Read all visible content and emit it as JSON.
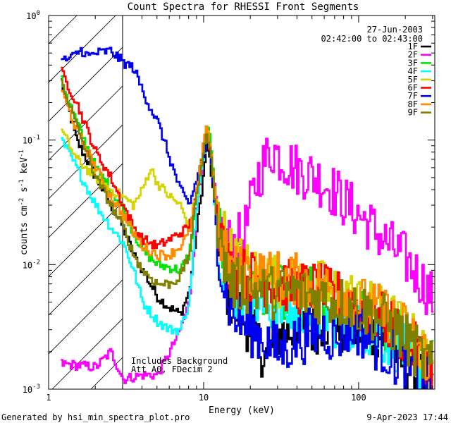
{
  "chart_data": {
    "type": "line",
    "title": "Count Spectra for RHESSI Front Segments",
    "xlabel": "Energy (keV)",
    "ylabel_base": "counts cm",
    "ylabel_sup1": "-2",
    "ylabel_mid1": " s",
    "ylabel_sup2": "-1",
    "ylabel_mid2": " keV",
    "ylabel_sup3": "-1",
    "x_scale": "log",
    "y_scale": "log",
    "xlim": [
      1,
      310
    ],
    "ylim": [
      0.001,
      1
    ],
    "x_ticks": [
      {
        "value": 1,
        "label": "1"
      },
      {
        "value": 10,
        "label": "10"
      },
      {
        "value": 100,
        "label": "100"
      }
    ],
    "y_ticks": [
      {
        "value": 0.001,
        "base": "10",
        "exp": "-3"
      },
      {
        "value": 0.01,
        "base": "10",
        "exp": "-2"
      },
      {
        "value": 0.1,
        "base": "10",
        "exp": "-1"
      },
      {
        "value": 1,
        "base": "10",
        "exp": "0"
      }
    ],
    "date": "27-Jun-2003",
    "time_range": "02:42:00 to 02:43:00",
    "legend_position": "top-right",
    "shaded_region": {
      "xmin": 1,
      "xmax": 3
    },
    "annotations": [
      "Includes Background",
      "Att A0, FDecim 2"
    ],
    "series": [
      {
        "name": "1F",
        "color": "#000000",
        "points": [
          [
            1.2,
            0.3
          ],
          [
            1.5,
            0.1
          ],
          [
            2.0,
            0.05
          ],
          [
            2.5,
            0.03
          ],
          [
            3.0,
            0.02
          ],
          [
            3.5,
            0.012
          ],
          [
            4.0,
            0.009
          ],
          [
            5.0,
            0.0055
          ],
          [
            6.0,
            0.0045
          ],
          [
            7.0,
            0.004
          ],
          [
            8.0,
            0.006
          ],
          [
            9.0,
            0.02
          ],
          [
            10.0,
            0.06
          ],
          [
            10.5,
            0.1
          ],
          [
            11.0,
            0.06
          ],
          [
            12.0,
            0.02
          ],
          [
            13.0,
            0.008
          ],
          [
            15.0,
            0.005
          ],
          [
            20.0,
            0.003
          ],
          [
            25.0,
            0.0018
          ],
          [
            30.0,
            0.0028
          ],
          [
            40.0,
            0.003
          ],
          [
            50.0,
            0.003
          ],
          [
            60.0,
            0.0035
          ],
          [
            70.0,
            0.003
          ],
          [
            80.0,
            0.003
          ],
          [
            100.0,
            0.003
          ],
          [
            150.0,
            0.0025
          ],
          [
            200.0,
            0.0015
          ],
          [
            300.0,
            0.0011
          ]
        ]
      },
      {
        "name": "2F",
        "color": "#ff00ff",
        "points": [
          [
            1.2,
            0.0016
          ],
          [
            2.0,
            0.0015
          ],
          [
            2.5,
            0.002
          ],
          [
            3.0,
            0.0012
          ],
          [
            4.0,
            0.0013
          ],
          [
            5.0,
            0.0013
          ],
          [
            6.0,
            0.002
          ],
          [
            7.0,
            0.003
          ],
          [
            8.0,
            0.005
          ],
          [
            9.0,
            0.03
          ],
          [
            10.0,
            0.09
          ],
          [
            10.5,
            0.13
          ],
          [
            11.0,
            0.08
          ],
          [
            12.0,
            0.03
          ],
          [
            13.0,
            0.018
          ],
          [
            15.0,
            0.014
          ],
          [
            18.0,
            0.017
          ],
          [
            20.0,
            0.03
          ],
          [
            22.0,
            0.05
          ],
          [
            25.0,
            0.07
          ],
          [
            28.0,
            0.085
          ],
          [
            30.0,
            0.075
          ],
          [
            35.0,
            0.065
          ],
          [
            40.0,
            0.058
          ],
          [
            50.0,
            0.052
          ],
          [
            60.0,
            0.045
          ],
          [
            70.0,
            0.038
          ],
          [
            80.0,
            0.032
          ],
          [
            100.0,
            0.025
          ],
          [
            120.0,
            0.02
          ],
          [
            150.0,
            0.015
          ],
          [
            200.0,
            0.011
          ],
          [
            250.0,
            0.0075
          ],
          [
            300.0,
            0.0055
          ]
        ]
      },
      {
        "name": "3F",
        "color": "#00e600",
        "points": [
          [
            1.2,
            0.3
          ],
          [
            1.5,
            0.14
          ],
          [
            2.0,
            0.06
          ],
          [
            2.5,
            0.04
          ],
          [
            3.0,
            0.028
          ],
          [
            3.5,
            0.018
          ],
          [
            4.0,
            0.013
          ],
          [
            5.0,
            0.01
          ],
          [
            6.0,
            0.0095
          ],
          [
            7.0,
            0.009
          ],
          [
            8.0,
            0.012
          ],
          [
            9.0,
            0.04
          ],
          [
            10.0,
            0.09
          ],
          [
            10.5,
            0.14
          ],
          [
            11.0,
            0.09
          ],
          [
            12.0,
            0.025
          ],
          [
            13.0,
            0.012
          ],
          [
            15.0,
            0.008
          ],
          [
            20.0,
            0.007
          ],
          [
            25.0,
            0.0065
          ],
          [
            30.0,
            0.006
          ],
          [
            40.0,
            0.006
          ],
          [
            50.0,
            0.006
          ],
          [
            60.0,
            0.0055
          ],
          [
            70.0,
            0.005
          ],
          [
            80.0,
            0.005
          ],
          [
            100.0,
            0.004
          ],
          [
            150.0,
            0.003
          ],
          [
            200.0,
            0.0025
          ],
          [
            300.0,
            0.0015
          ]
        ]
      },
      {
        "name": "4F",
        "color": "#00ffff",
        "points": [
          [
            1.2,
            0.1
          ],
          [
            1.5,
            0.06
          ],
          [
            2.0,
            0.03
          ],
          [
            2.5,
            0.02
          ],
          [
            3.0,
            0.015
          ],
          [
            3.5,
            0.009
          ],
          [
            4.0,
            0.005
          ],
          [
            5.0,
            0.0035
          ],
          [
            6.0,
            0.003
          ],
          [
            7.0,
            0.003
          ],
          [
            8.0,
            0.005
          ],
          [
            9.0,
            0.03
          ],
          [
            10.0,
            0.08
          ],
          [
            10.5,
            0.13
          ],
          [
            11.0,
            0.08
          ],
          [
            12.0,
            0.02
          ],
          [
            13.0,
            0.01
          ],
          [
            15.0,
            0.006
          ],
          [
            20.0,
            0.005
          ],
          [
            25.0,
            0.0045
          ],
          [
            30.0,
            0.0045
          ],
          [
            40.0,
            0.004
          ],
          [
            50.0,
            0.004
          ],
          [
            60.0,
            0.004
          ],
          [
            70.0,
            0.0035
          ],
          [
            80.0,
            0.0035
          ],
          [
            100.0,
            0.003
          ],
          [
            150.0,
            0.0025
          ],
          [
            200.0,
            0.002
          ],
          [
            300.0,
            0.0012
          ]
        ]
      },
      {
        "name": "5F",
        "color": "#d4d400",
        "points": [
          [
            1.2,
            0.12
          ],
          [
            1.5,
            0.07
          ],
          [
            2.0,
            0.05
          ],
          [
            2.5,
            0.04
          ],
          [
            3.0,
            0.035
          ],
          [
            3.5,
            0.03
          ],
          [
            4.0,
            0.04
          ],
          [
            4.5,
            0.06
          ],
          [
            5.0,
            0.045
          ],
          [
            6.0,
            0.035
          ],
          [
            7.0,
            0.03
          ],
          [
            8.0,
            0.02
          ],
          [
            9.0,
            0.04
          ],
          [
            10.0,
            0.1
          ],
          [
            10.5,
            0.12
          ],
          [
            11.0,
            0.07
          ],
          [
            12.0,
            0.03
          ],
          [
            13.0,
            0.02
          ],
          [
            15.0,
            0.012
          ],
          [
            20.0,
            0.009
          ],
          [
            25.0,
            0.008
          ],
          [
            30.0,
            0.0075
          ],
          [
            40.0,
            0.007
          ],
          [
            50.0,
            0.007
          ],
          [
            60.0,
            0.0065
          ],
          [
            70.0,
            0.006
          ],
          [
            80.0,
            0.006
          ],
          [
            100.0,
            0.005
          ],
          [
            150.0,
            0.004
          ],
          [
            200.0,
            0.003
          ],
          [
            300.0,
            0.0015
          ]
        ]
      },
      {
        "name": "6F",
        "color": "#ff0000",
        "points": [
          [
            1.2,
            0.35
          ],
          [
            1.5,
            0.2
          ],
          [
            2.0,
            0.08
          ],
          [
            2.5,
            0.05
          ],
          [
            3.0,
            0.03
          ],
          [
            3.5,
            0.02
          ],
          [
            4.0,
            0.016
          ],
          [
            5.0,
            0.014
          ],
          [
            6.0,
            0.016
          ],
          [
            7.0,
            0.018
          ],
          [
            8.0,
            0.02
          ],
          [
            9.0,
            0.04
          ],
          [
            10.0,
            0.1
          ],
          [
            10.5,
            0.12
          ],
          [
            11.0,
            0.08
          ],
          [
            12.0,
            0.03
          ],
          [
            13.0,
            0.015
          ],
          [
            15.0,
            0.009
          ],
          [
            20.0,
            0.008
          ],
          [
            25.0,
            0.0075
          ],
          [
            30.0,
            0.007
          ],
          [
            40.0,
            0.0065
          ],
          [
            50.0,
            0.0065
          ],
          [
            60.0,
            0.006
          ],
          [
            70.0,
            0.0055
          ],
          [
            80.0,
            0.0055
          ],
          [
            100.0,
            0.0045
          ],
          [
            150.0,
            0.0035
          ],
          [
            200.0,
            0.0025
          ],
          [
            300.0,
            0.0014
          ]
        ]
      },
      {
        "name": "7F",
        "color": "#0000ee",
        "points": [
          [
            1.2,
            0.43
          ],
          [
            1.4,
            0.46
          ],
          [
            1.6,
            0.53
          ],
          [
            1.8,
            0.47
          ],
          [
            2.0,
            0.5
          ],
          [
            2.5,
            0.52
          ],
          [
            3.0,
            0.42
          ],
          [
            3.5,
            0.38
          ],
          [
            4.0,
            0.25
          ],
          [
            4.5,
            0.18
          ],
          [
            5.0,
            0.14
          ],
          [
            5.5,
            0.1
          ],
          [
            6.0,
            0.07
          ],
          [
            7.0,
            0.04
          ],
          [
            8.0,
            0.03
          ],
          [
            9.0,
            0.05
          ],
          [
            10.0,
            0.08
          ],
          [
            10.5,
            0.11
          ],
          [
            11.0,
            0.07
          ],
          [
            12.0,
            0.02
          ],
          [
            13.0,
            0.008
          ],
          [
            15.0,
            0.004
          ],
          [
            20.0,
            0.003
          ],
          [
            25.0,
            0.0025
          ],
          [
            30.0,
            0.002
          ],
          [
            40.0,
            0.0025
          ],
          [
            50.0,
            0.0028
          ],
          [
            60.0,
            0.003
          ],
          [
            70.0,
            0.0025
          ],
          [
            80.0,
            0.003
          ],
          [
            100.0,
            0.003
          ],
          [
            150.0,
            0.002
          ],
          [
            200.0,
            0.0015
          ],
          [
            300.0,
            0.001
          ]
        ]
      },
      {
        "name": "8F",
        "color": "#ff8c00",
        "points": [
          [
            1.2,
            0.25
          ],
          [
            1.5,
            0.12
          ],
          [
            2.0,
            0.06
          ],
          [
            2.5,
            0.035
          ],
          [
            3.0,
            0.025
          ],
          [
            3.5,
            0.018
          ],
          [
            4.0,
            0.014
          ],
          [
            5.0,
            0.012
          ],
          [
            6.0,
            0.012
          ],
          [
            7.0,
            0.014
          ],
          [
            8.0,
            0.018
          ],
          [
            9.0,
            0.04
          ],
          [
            10.0,
            0.1
          ],
          [
            10.5,
            0.13
          ],
          [
            11.0,
            0.085
          ],
          [
            12.0,
            0.03
          ],
          [
            13.0,
            0.014
          ],
          [
            15.0,
            0.009
          ],
          [
            20.0,
            0.0085
          ],
          [
            25.0,
            0.008
          ],
          [
            30.0,
            0.008
          ],
          [
            40.0,
            0.0075
          ],
          [
            50.0,
            0.007
          ],
          [
            60.0,
            0.0065
          ],
          [
            70.0,
            0.006
          ],
          [
            80.0,
            0.006
          ],
          [
            100.0,
            0.005
          ],
          [
            150.0,
            0.004
          ],
          [
            200.0,
            0.003
          ],
          [
            300.0,
            0.0016
          ]
        ]
      },
      {
        "name": "9F",
        "color": "#808000",
        "points": [
          [
            1.2,
            0.3
          ],
          [
            1.5,
            0.13
          ],
          [
            2.0,
            0.05
          ],
          [
            2.5,
            0.03
          ],
          [
            3.0,
            0.02
          ],
          [
            3.5,
            0.012
          ],
          [
            4.0,
            0.009
          ],
          [
            5.0,
            0.007
          ],
          [
            6.0,
            0.007
          ],
          [
            7.0,
            0.008
          ],
          [
            8.0,
            0.012
          ],
          [
            9.0,
            0.04
          ],
          [
            10.0,
            0.09
          ],
          [
            10.5,
            0.11
          ],
          [
            11.0,
            0.075
          ],
          [
            12.0,
            0.025
          ],
          [
            13.0,
            0.012
          ],
          [
            15.0,
            0.007
          ],
          [
            20.0,
            0.0065
          ],
          [
            25.0,
            0.006
          ],
          [
            30.0,
            0.006
          ],
          [
            40.0,
            0.006
          ],
          [
            50.0,
            0.0055
          ],
          [
            60.0,
            0.0055
          ],
          [
            70.0,
            0.005
          ],
          [
            80.0,
            0.005
          ],
          [
            100.0,
            0.0045
          ],
          [
            150.0,
            0.0035
          ],
          [
            200.0,
            0.0025
          ],
          [
            300.0,
            0.0014
          ]
        ]
      }
    ]
  },
  "footer": {
    "generated_by": "Generated by hsi_min_spectra_plot.pro",
    "timestamp": "9-Apr-2023 17:44"
  }
}
